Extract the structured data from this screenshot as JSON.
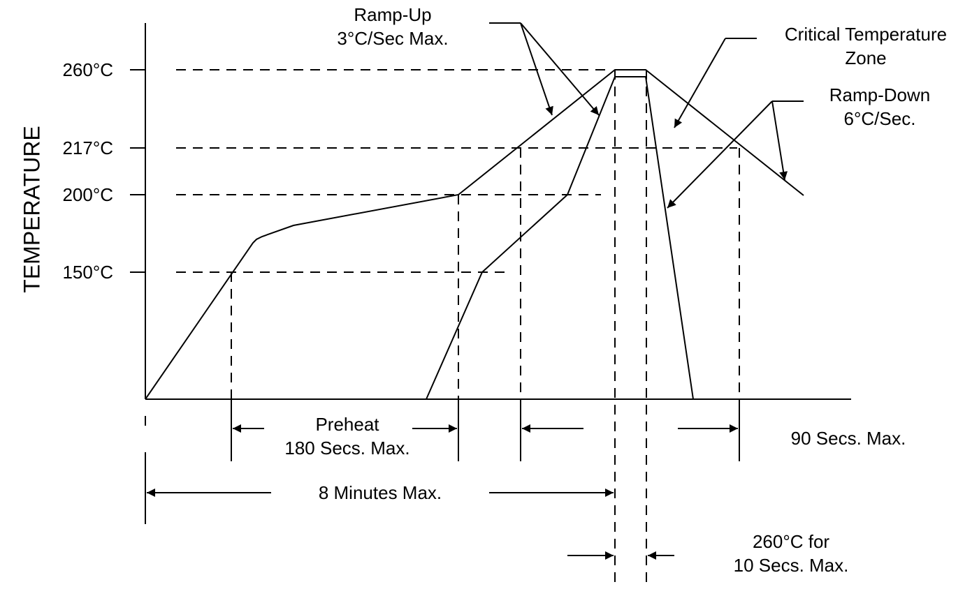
{
  "diagram": {
    "y_axis_title": "TEMPERATURE",
    "y_tick_labels": [
      "260°C",
      "217°C",
      "200°C",
      "150°C"
    ],
    "annotations": {
      "ramp_up": [
        "Ramp-Up",
        "3°C/Sec Max."
      ],
      "critical_zone": [
        "Critical Temperature",
        "Zone"
      ],
      "ramp_down": [
        "Ramp-Down",
        "6°C/Sec."
      ],
      "preheat": [
        "Preheat",
        "180 Secs. Max."
      ],
      "ninety_secs": "90 Secs. Max.",
      "eight_minutes": "8 Minutes Max.",
      "peak_hold": [
        "260°C for",
        "10 Secs. Max."
      ]
    },
    "colors": {
      "line": "#000000",
      "background": "#ffffff"
    }
  }
}
